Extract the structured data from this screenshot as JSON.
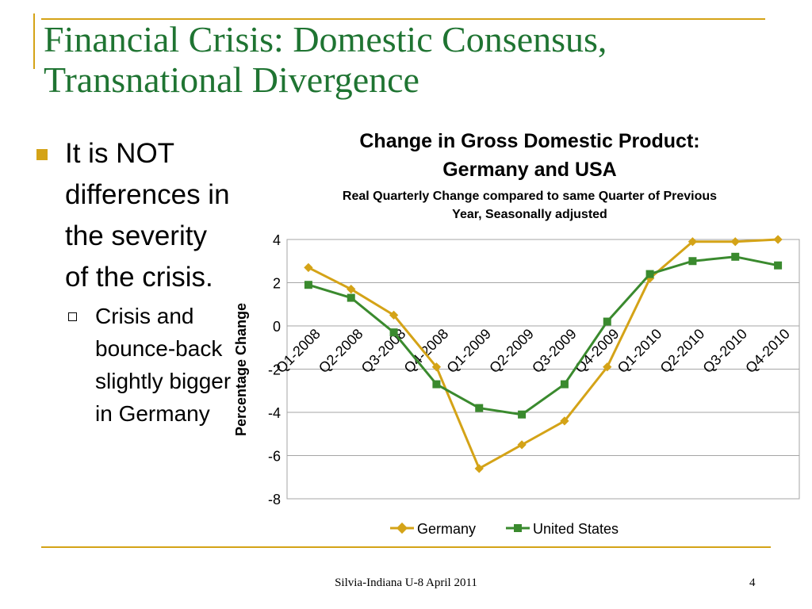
{
  "slide": {
    "title_line1": "Financial Crisis: Domestic Consensus,",
    "title_line2": "Transnational Divergence",
    "bullet_main": "It is NOT differences in the severity of the crisis.",
    "bullet_sub": "Crisis and bounce-back slightly bigger in Germany",
    "footer": "Silvia-Indiana U-8 April 2011",
    "page_number": "4"
  },
  "colors": {
    "accent": "#d4a317",
    "title": "#1f7432",
    "germany": "#d4a317",
    "usa": "#3a8a2e",
    "gridline": "#a6a6a6"
  },
  "chart_data": {
    "type": "line",
    "title_line1": "Change in Gross Domestic Product:",
    "title_line2": "Germany and USA",
    "subtitle_line1": "Real Quarterly Change compared to same Quarter of Previous",
    "subtitle_line2": "Year, Seasonally adjusted",
    "ylabel": "Percentage Change",
    "xlabel": "",
    "ylim": [
      -8,
      4
    ],
    "yticks": [
      "4",
      "2",
      "0",
      "-2",
      "-4",
      "-6",
      "-8"
    ],
    "grid": true,
    "legend_position": "bottom",
    "categories": [
      "Q1-2008",
      "Q2-2008",
      "Q3-2008",
      "Q4-2008",
      "Q1-2009",
      "Q2-2009",
      "Q3-2009",
      "Q4-2009",
      "Q1-2010",
      "Q2-2010",
      "Q3-2010",
      "Q4-2010"
    ],
    "series": [
      {
        "name": "Germany",
        "marker": "diamond",
        "values": [
          2.7,
          1.7,
          0.5,
          -1.9,
          -6.6,
          -5.5,
          -4.4,
          -1.9,
          2.2,
          3.9,
          3.9,
          4.0
        ]
      },
      {
        "name": "United States",
        "marker": "square",
        "values": [
          1.9,
          1.3,
          -0.3,
          -2.7,
          -3.8,
          -4.1,
          -2.7,
          0.2,
          2.4,
          3.0,
          3.2,
          2.8
        ]
      }
    ]
  }
}
